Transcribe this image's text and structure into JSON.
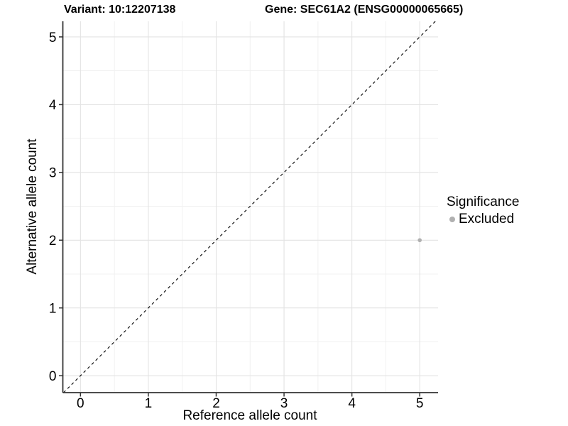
{
  "header": {
    "title_left": "Variant: 10:12207138",
    "title_right": "Gene: SEC61A2 (ENSG00000065665)"
  },
  "chart_data": {
    "type": "scatter",
    "xlabel": "Reference allele count",
    "ylabel": "Alternative allele count",
    "xlim": [
      -0.26,
      5.27
    ],
    "ylim": [
      -0.25,
      5.23
    ],
    "xticks": [
      0,
      1,
      2,
      3,
      4,
      5
    ],
    "yticks": [
      0,
      1,
      2,
      3,
      4,
      5
    ],
    "x_minor": [
      0.5,
      1.5,
      2.5,
      3.5,
      4.5
    ],
    "y_minor": [
      0.5,
      1.5,
      2.5,
      3.5,
      4.5
    ],
    "grid": "on",
    "points": [
      {
        "x": 5,
        "y": 2,
        "series": "Excluded"
      }
    ],
    "reference_line": {
      "type": "identity",
      "slope": 1,
      "intercept": 0,
      "style": "dashed"
    },
    "legend": {
      "title": "Significance",
      "position": "right",
      "entries": [
        {
          "label": "Excluded",
          "color": "#b0b0b0"
        }
      ]
    },
    "colors": {
      "point": "#b0b0b0",
      "grid_major": "#e3e3e3",
      "grid_minor": "#f1f1f1",
      "axis": "#333333",
      "identity_line": "#111111",
      "text": "#000000",
      "background": "#ffffff"
    }
  }
}
